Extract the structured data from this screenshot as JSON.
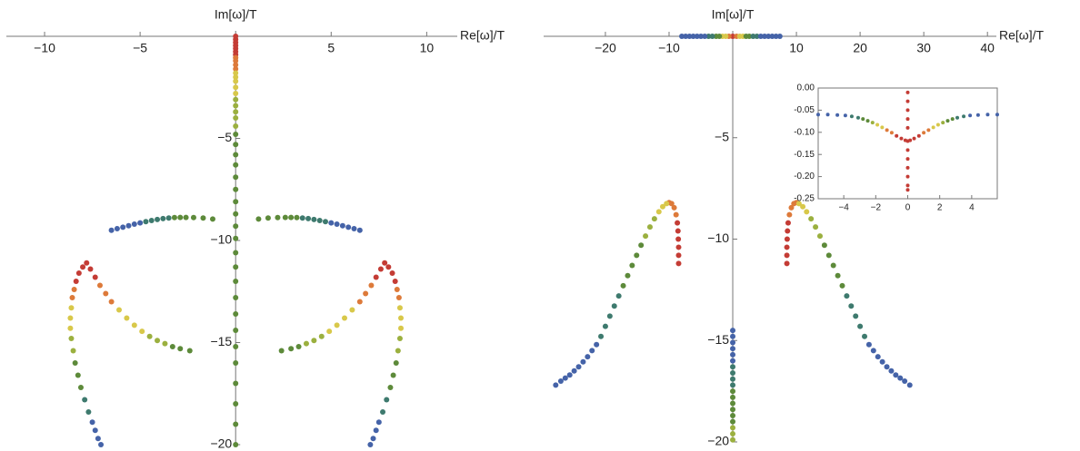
{
  "chart_data": [
    {
      "type": "scatter",
      "x_label": "Re[ω]/T",
      "y_label": "Im[ω]/T",
      "frame": false,
      "xlim": [
        -12,
        11.6
      ],
      "ylim": [
        -20,
        0
      ],
      "xticks": [
        {
          "value": -10,
          "label": "−10"
        },
        {
          "value": -5,
          "label": "−5"
        },
        5,
        10
      ],
      "yticks": [
        {
          "value": -5,
          "label": "−5"
        },
        {
          "value": -10,
          "label": "−10"
        },
        {
          "value": -15,
          "label": "−15"
        },
        {
          "value": -20,
          "label": "−20"
        }
      ],
      "series": [
        {
          "color": "#c43c35",
          "x": [
            0,
            0,
            0,
            0,
            0,
            0,
            0,
            -7.8,
            -7.6,
            -7.35,
            -8.0,
            -8.2,
            -8.35,
            7.8,
            7.6,
            7.35,
            8.0,
            8.2,
            8.35
          ],
          "y": [
            0,
            -0.15,
            -0.3,
            -0.45,
            -0.6,
            -0.75,
            -0.9,
            -11.1,
            -11.4,
            -11.8,
            -11.3,
            -11.6,
            -12.0,
            -11.1,
            -11.4,
            -11.8,
            -11.3,
            -11.6,
            -12.0
          ]
        },
        {
          "color": "#dd7a3a",
          "x": [
            0,
            0,
            0,
            0,
            -7.1,
            -6.8,
            -6.5,
            -8.45,
            -8.55,
            7.1,
            6.8,
            6.5,
            8.45,
            8.55
          ],
          "y": [
            -1.05,
            -1.2,
            -1.4,
            -1.6,
            -12.2,
            -12.6,
            -13.0,
            -12.4,
            -12.8,
            -12.2,
            -12.6,
            -13.0,
            -12.4,
            -12.8
          ]
        },
        {
          "color": "#d8c84a",
          "x": [
            0,
            0,
            0,
            0,
            0,
            -6.1,
            -5.7,
            -5.3,
            -4.9,
            -8.6,
            -8.65,
            -8.65,
            6.1,
            5.7,
            5.3,
            4.9,
            8.6,
            8.65,
            8.65
          ],
          "y": [
            -1.8,
            -2.0,
            -2.2,
            -2.5,
            -2.8,
            -13.4,
            -13.8,
            -14.15,
            -14.45,
            -13.3,
            -13.8,
            -14.3,
            -13.4,
            -13.8,
            -14.15,
            -14.45,
            -13.3,
            -13.8,
            -14.3
          ]
        },
        {
          "color": "#9bb03f",
          "x": [
            0,
            0,
            0,
            0,
            0,
            -4.5,
            -4.1,
            -3.7,
            -8.6,
            -8.5,
            4.5,
            4.1,
            3.7,
            8.6,
            8.5
          ],
          "y": [
            -3.1,
            -3.4,
            -3.7,
            -4.0,
            -4.4,
            -14.7,
            -14.9,
            -15.05,
            -14.8,
            -15.4,
            -14.7,
            -14.9,
            -15.05,
            -14.8,
            -15.4
          ]
        },
        {
          "color": "#5d8a3a",
          "x": [
            0,
            0,
            0,
            0,
            0,
            0,
            0,
            0,
            0,
            0,
            0,
            0,
            0,
            0,
            0,
            0,
            0,
            0,
            0,
            0,
            0,
            0,
            -3.2,
            -2.9,
            -2.6,
            -2.2,
            -1.7,
            -1.2,
            3.2,
            2.9,
            2.6,
            2.2,
            1.7,
            1.2,
            -3.3,
            -2.9,
            -2.4,
            3.3,
            2.9,
            2.4,
            -8.4,
            -8.25,
            -8.1,
            8.4,
            8.25,
            8.1
          ],
          "y": [
            -4.8,
            -5.3,
            -5.8,
            -6.3,
            -6.9,
            -7.5,
            -8.1,
            -8.7,
            -9.3,
            -9.9,
            -10.6,
            -11.3,
            -12,
            -12.8,
            -13.6,
            -14.4,
            -15.2,
            -16,
            -17,
            -18,
            -19,
            -20,
            -8.88,
            -8.87,
            -8.87,
            -8.88,
            -8.9,
            -8.95,
            -8.88,
            -8.87,
            -8.87,
            -8.88,
            -8.9,
            -8.95,
            -15.2,
            -15.3,
            -15.4,
            -15.2,
            -15.3,
            -15.4,
            -16.0,
            -16.6,
            -17.2,
            -16.0,
            -16.6,
            -17.2
          ]
        },
        {
          "color": "#3e7a6e",
          "x": [
            -4.7,
            -4.4,
            -4.1,
            -3.8,
            -3.5,
            4.7,
            4.4,
            4.1,
            3.8,
            3.5,
            -7.9,
            -7.7,
            7.9,
            7.7
          ],
          "y": [
            -9.08,
            -9.02,
            -8.97,
            -8.93,
            -8.9,
            -9.08,
            -9.02,
            -8.97,
            -8.93,
            -8.9,
            -17.8,
            -18.4,
            -17.8,
            -18.4
          ]
        },
        {
          "color": "#4563a8",
          "x": [
            -6.5,
            -6.2,
            -5.9,
            -5.6,
            -5.3,
            -5.0,
            6.5,
            6.2,
            5.9,
            5.6,
            5.3,
            5.0,
            -7.5,
            -7.35,
            -7.2,
            -7.05,
            7.5,
            7.35,
            7.2,
            7.05
          ],
          "y": [
            -9.5,
            -9.42,
            -9.35,
            -9.28,
            -9.2,
            -9.14,
            -9.5,
            -9.42,
            -9.35,
            -9.28,
            -9.2,
            -9.14,
            -18.9,
            -19.3,
            -19.7,
            -20.0,
            -18.9,
            -19.3,
            -19.7,
            -20.0
          ]
        }
      ]
    },
    {
      "type": "scatter",
      "x_label": "Re[ω]/T",
      "y_label": "Im[ω]/T",
      "frame": false,
      "xlim": [
        -29.7,
        41.4
      ],
      "ylim": [
        -20,
        0
      ],
      "xticks": [
        {
          "value": -20,
          "label": "−20"
        },
        {
          "value": -10,
          "label": "−10"
        },
        10,
        20,
        30,
        40
      ],
      "yticks": [
        {
          "value": -5,
          "label": "−5"
        },
        {
          "value": -10,
          "label": "−10"
        },
        {
          "value": -15,
          "label": "−15"
        },
        {
          "value": -20,
          "label": "−20"
        }
      ],
      "series": [
        {
          "color": "#c43c35",
          "x": [
            0,
            -8.7,
            -8.6,
            -8.55,
            -8.5,
            -8.5,
            -8.5,
            8.7,
            8.6,
            8.55,
            8.5,
            8.5,
            8.5
          ],
          "y": [
            0,
            -9.2,
            -9.6,
            -10.0,
            -10.4,
            -10.8,
            -11.2,
            -9.2,
            -9.6,
            -10.0,
            -10.4,
            -10.8,
            -11.2
          ]
        },
        {
          "color": "#dd7a3a",
          "x": [
            -0.6,
            0.6,
            -9.6,
            -9.2,
            -8.9,
            -10.0,
            9.6,
            9.2,
            8.9,
            10.0
          ],
          "y": [
            0,
            0,
            -8.25,
            -8.45,
            -8.8,
            -8.2,
            -8.25,
            -8.45,
            -8.8,
            -8.2
          ]
        },
        {
          "color": "#d8c84a",
          "x": [
            -1.6,
            -1.1,
            1.1,
            1.6,
            -10.4,
            -11.0,
            -11.6,
            10.4,
            11.0,
            11.6
          ],
          "y": [
            0,
            0,
            0,
            0,
            -8.25,
            -8.4,
            -8.65,
            -8.25,
            -8.4,
            -8.65
          ]
        },
        {
          "color": "#9bb03f",
          "x": [
            0,
            0,
            0,
            -12.3,
            -13.0,
            -13.7,
            12.3,
            13.0,
            13.7
          ],
          "y": [
            -19.3,
            -19.6,
            -19.9,
            -9.0,
            -9.4,
            -9.85,
            -9.0,
            -9.4,
            -9.85
          ]
        },
        {
          "color": "#5d8a3a",
          "x": [
            -2.6,
            -2.1,
            2.1,
            2.6,
            0,
            0,
            0,
            0,
            0,
            0,
            -14.4,
            -15.1,
            -15.8,
            -16.5,
            -17.2,
            14.4,
            15.1,
            15.8,
            16.5,
            17.2
          ],
          "y": [
            0,
            0,
            0,
            0,
            -17.5,
            -17.8,
            -18.1,
            -18.4,
            -18.7,
            -19.0,
            -10.3,
            -10.8,
            -11.3,
            -11.8,
            -12.3,
            -10.3,
            -10.8,
            -11.3,
            -11.8,
            -12.3
          ]
        },
        {
          "color": "#3e7a6e",
          "x": [
            -3.8,
            -3.2,
            3.2,
            3.8,
            0,
            0,
            0,
            0,
            -17.9,
            -18.6,
            -19.3,
            -20,
            -20.7,
            17.9,
            18.6,
            19.3,
            20,
            20.7
          ],
          "y": [
            0,
            0,
            0,
            0,
            -16.3,
            -16.6,
            -16.9,
            -17.2,
            -12.8,
            -13.3,
            -13.8,
            -14.3,
            -14.8,
            -12.8,
            -13.3,
            -13.8,
            -14.3,
            -14.8
          ]
        },
        {
          "color": "#4563a8",
          "x": [
            -8,
            -7.4,
            -6.8,
            -6.2,
            -5.6,
            -5,
            -4.4,
            4.4,
            5,
            5.6,
            6.2,
            6.8,
            7.4,
            0,
            0,
            0,
            0,
            0,
            0,
            -21.4,
            -22.1,
            -22.8,
            -23.5,
            -24.2,
            -24.9,
            -25.6,
            -26.3,
            -27,
            -27.8,
            21.4,
            22.1,
            22.8,
            23.5,
            24.2,
            24.9,
            25.6,
            26.3,
            27,
            27.8
          ],
          "y": [
            0,
            0,
            0,
            0,
            0,
            0,
            0,
            0,
            0,
            0,
            0,
            0,
            0,
            -14.5,
            -14.8,
            -15.1,
            -15.4,
            -15.7,
            -16.0,
            -15.2,
            -15.5,
            -15.8,
            -16.05,
            -16.3,
            -16.5,
            -16.7,
            -16.85,
            -17,
            -17.2,
            -15.2,
            -15.5,
            -15.8,
            -16.05,
            -16.3,
            -16.5,
            -16.7,
            -16.85,
            -17,
            -17.2
          ]
        }
      ]
    },
    {
      "type": "scatter",
      "frame": true,
      "xlim": [
        -5.6,
        5.6
      ],
      "ylim": [
        -0.25,
        0
      ],
      "xticks": [
        {
          "value": -4,
          "label": "−4"
        },
        {
          "value": -2,
          "label": "−2"
        },
        0,
        2,
        4
      ],
      "yticks": [
        {
          "value": 0,
          "label": "0.00"
        },
        {
          "value": -0.05,
          "label": "-0.05"
        },
        {
          "value": -0.1,
          "label": "-0.10"
        },
        {
          "value": -0.15,
          "label": "-0.15"
        },
        {
          "value": -0.2,
          "label": "-0.20"
        },
        {
          "value": -0.25,
          "label": "-0.25"
        }
      ],
      "series": [
        {
          "color": "#4563a8",
          "x": [
            -5.6,
            -5.0,
            -4.4,
            -3.9,
            3.9,
            4.4,
            5.0,
            5.6
          ],
          "y": [
            -0.06,
            -0.06,
            -0.061,
            -0.062,
            -0.062,
            -0.061,
            -0.06,
            -0.06
          ]
        },
        {
          "color": "#3e7a6e",
          "x": [
            -3.5,
            -3.1,
            3.1,
            3.5
          ],
          "y": [
            -0.064,
            -0.067,
            -0.067,
            -0.064
          ]
        },
        {
          "color": "#5d8a3a",
          "x": [
            -2.8,
            -2.5,
            2.5,
            2.8
          ],
          "y": [
            -0.07,
            -0.074,
            -0.074,
            -0.07
          ]
        },
        {
          "color": "#9bb03f",
          "x": [
            -2.2,
            2.2
          ],
          "y": [
            -0.078,
            -0.078
          ]
        },
        {
          "color": "#d8c84a",
          "x": [
            -1.9,
            -1.6,
            1.6,
            1.9
          ],
          "y": [
            -0.083,
            -0.089,
            -0.089,
            -0.083
          ]
        },
        {
          "color": "#dd7a3a",
          "x": [
            -1.3,
            -1.0,
            1.0,
            1.3
          ],
          "y": [
            -0.095,
            -0.101,
            -0.101,
            -0.095
          ]
        },
        {
          "color": "#c43c35",
          "x": [
            -0.7,
            -0.4,
            -0.15,
            0.15,
            0.4,
            0.7,
            0,
            0,
            0,
            0,
            0,
            0,
            0,
            0,
            0,
            0,
            0,
            0
          ],
          "y": [
            -0.108,
            -0.114,
            -0.118,
            -0.118,
            -0.114,
            -0.108,
            -0.01,
            -0.03,
            -0.05,
            -0.07,
            -0.09,
            -0.12,
            -0.14,
            -0.16,
            -0.18,
            -0.2,
            -0.22,
            -0.23
          ]
        }
      ]
    }
  ]
}
